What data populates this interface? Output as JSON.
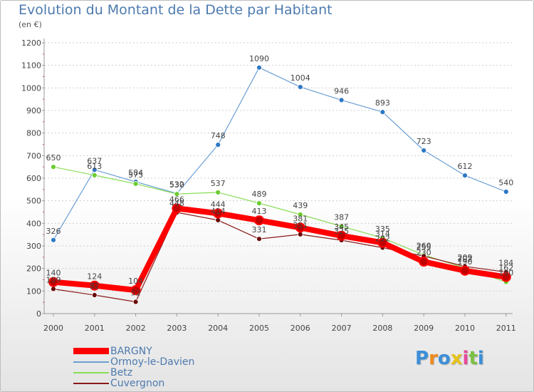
{
  "chart_data": {
    "type": "line",
    "title": "Evolution du Montant de la Dette par Habitant",
    "subtitle": "(en €)",
    "xlabel": "",
    "ylabel": "",
    "ylim": [
      0,
      1200
    ],
    "yticks": [
      "0",
      "100",
      "200",
      "300",
      "400",
      "500",
      "600",
      "700",
      "800",
      "900",
      "1000",
      "1100",
      "1200"
    ],
    "categories": [
      "2000",
      "2001",
      "2002",
      "2003",
      "2004",
      "2005",
      "2006",
      "2007",
      "2008",
      "2009",
      "2010",
      "2011"
    ],
    "grid": true,
    "legend_position": "bottom-left",
    "series": [
      {
        "name": "BARGNY",
        "color": "#ff0000",
        "marker_color": "#c00000",
        "values": [
          140,
          124,
          104,
          466,
          444,
          413,
          381,
          345,
          314,
          230,
          190,
          162
        ],
        "labels": [
          "140",
          "124",
          "104",
          "466",
          "444",
          "413",
          "381",
          "345",
          "314",
          "230",
          "190",
          "162"
        ]
      },
      {
        "name": "Ormoy-le-Davien",
        "color": "#6b9fd4",
        "marker_color": "#2e78c4",
        "values": [
          326,
          637,
          584,
          532,
          748,
          1090,
          1004,
          946,
          893,
          723,
          612,
          540
        ],
        "labels": [
          "326",
          "637",
          "584",
          "532",
          "748",
          "1090",
          "1004",
          "946",
          "893",
          "723",
          "612",
          "540"
        ]
      },
      {
        "name": "Betz",
        "color": "#88dd55",
        "marker_color": "#6ccc30",
        "values": [
          650,
          613,
          575,
          530,
          537,
          489,
          439,
          387,
          335,
          260,
          202,
          140
        ],
        "labels": [
          "650",
          "613",
          "575",
          "530",
          "537",
          "489",
          "439",
          "387",
          "335",
          "260",
          "202",
          "140"
        ]
      },
      {
        "name": "Cuvergnon",
        "color": "#8b1a1a",
        "marker_color": "#6b0a0a",
        "values": [
          109,
          82,
          52,
          448,
          414,
          331,
          351,
          325,
          292,
          255,
          209,
          184
        ],
        "labels": [
          "109",
          "82",
          "52",
          "448",
          "414",
          "331",
          "351",
          "325",
          "292",
          "255",
          "209",
          "184"
        ]
      }
    ]
  },
  "logo": {
    "text": "Proxiti",
    "colors": [
      "#3b8fd8",
      "#f08a1c",
      "#3b8fd8",
      "#e8c21a",
      "#e84a9a",
      "#7bc043",
      "#3b8fd8"
    ]
  }
}
